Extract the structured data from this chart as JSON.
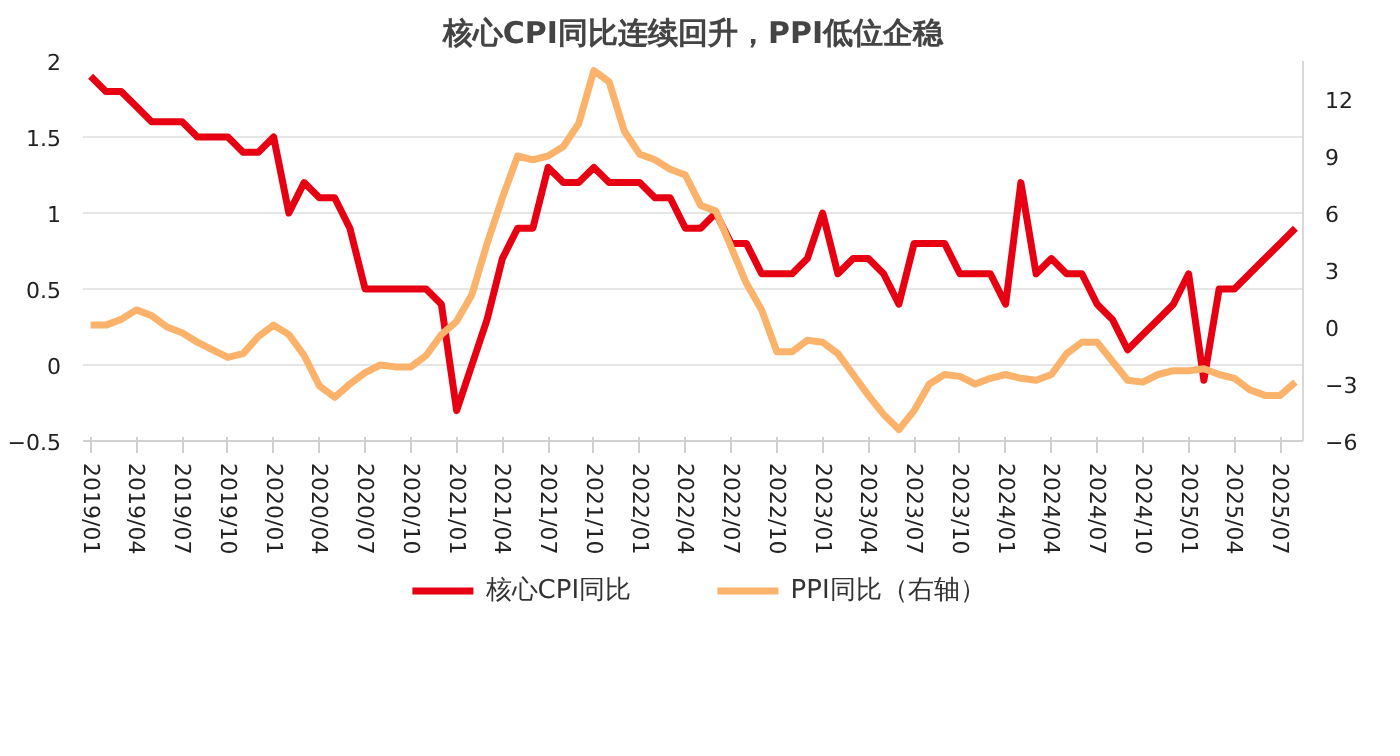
{
  "chart_data": {
    "type": "line",
    "title": "核心CPI同比连续回升，PPI低位企稳",
    "categories": [
      "2019/01",
      null,
      null,
      "2019/04",
      null,
      null,
      "2019/07",
      null,
      null,
      "2019/10",
      null,
      null,
      "2020/01",
      null,
      null,
      "2020/04",
      null,
      null,
      "2020/07",
      null,
      null,
      "2020/10",
      null,
      null,
      "2021/01",
      null,
      null,
      "2021/04",
      null,
      null,
      "2021/07",
      null,
      null,
      "2021/10",
      null,
      null,
      "2022/01",
      null,
      null,
      "2022/04",
      null,
      null,
      "2022/07",
      null,
      null,
      "2022/10",
      null,
      null,
      "2023/01",
      null,
      null,
      "2023/04",
      null,
      null,
      "2023/07",
      null,
      null,
      "2023/10",
      null,
      null,
      "2024/01",
      null,
      null,
      "2024/04",
      null,
      null,
      "2024/07",
      null,
      null,
      "2024/10",
      null,
      null,
      "2025/01",
      null,
      null,
      "2025/04",
      null,
      null,
      "2025/07",
      null
    ],
    "series": [
      {
        "name": "核心CPI同比",
        "color": "#e60012",
        "values": [
          1.9,
          1.8,
          1.8,
          1.7,
          1.6,
          1.6,
          1.6,
          1.5,
          1.5,
          1.5,
          1.4,
          1.4,
          1.5,
          1.0,
          1.2,
          1.1,
          1.1,
          0.9,
          0.5,
          0.5,
          0.5,
          0.5,
          0.5,
          0.4,
          -0.3,
          0.0,
          0.3,
          0.7,
          0.9,
          0.9,
          1.3,
          1.2,
          1.2,
          1.3,
          1.2,
          1.2,
          1.2,
          1.1,
          1.1,
          0.9,
          0.9,
          1.0,
          0.8,
          0.8,
          0.6,
          0.6,
          0.6,
          0.7,
          1.0,
          0.6,
          0.7,
          0.7,
          0.6,
          0.4,
          0.8,
          0.8,
          0.8,
          0.6,
          0.6,
          0.6,
          0.4,
          1.2,
          0.6,
          0.7,
          0.6,
          0.6,
          0.4,
          0.3,
          0.1,
          0.2,
          0.3,
          0.4,
          0.6,
          -0.1,
          0.5,
          0.5,
          0.6,
          0.7,
          0.8,
          0.9
        ]
      },
      {
        "name": "PPI同比（右轴）",
        "color": "#fbb26a",
        "axis": "y2",
        "values": [
          0.1,
          0.1,
          0.4,
          0.9,
          0.6,
          0.0,
          -0.3,
          -0.8,
          -1.2,
          -1.6,
          -1.4,
          -0.5,
          0.1,
          -0.4,
          -1.5,
          -3.1,
          -3.7,
          -3.0,
          -2.4,
          -2.0,
          -2.1,
          -2.1,
          -1.5,
          -0.4,
          0.3,
          1.7,
          4.4,
          6.8,
          9.0,
          8.8,
          9.0,
          9.5,
          10.7,
          13.5,
          12.9,
          10.3,
          9.1,
          8.8,
          8.3,
          8.0,
          6.4,
          6.1,
          4.2,
          2.3,
          0.9,
          -1.3,
          -1.3,
          -0.7,
          -0.8,
          -1.4,
          -2.5,
          -3.6,
          -4.6,
          -5.4,
          -4.4,
          -3.0,
          -2.5,
          -2.6,
          -3.0,
          -2.7,
          -2.5,
          -2.7,
          -2.8,
          -2.5,
          -1.4,
          -0.8,
          -0.8,
          -1.8,
          -2.8,
          -2.9,
          -2.5,
          -2.3,
          -2.3,
          -2.2,
          -2.5,
          -2.7,
          -3.3,
          -3.6,
          -3.6,
          -2.9
        ]
      }
    ],
    "ylim": [
      -0.5,
      2
    ],
    "yticks": [
      -0.5,
      0,
      0.5,
      1,
      1.5,
      2
    ],
    "y2lim": [
      -6,
      14
    ],
    "y2ticks": [
      -6,
      -3,
      0,
      3,
      6,
      9,
      12
    ],
    "grid": "y",
    "legend": "bottom",
    "marker": "none",
    "line_style": "solid"
  }
}
